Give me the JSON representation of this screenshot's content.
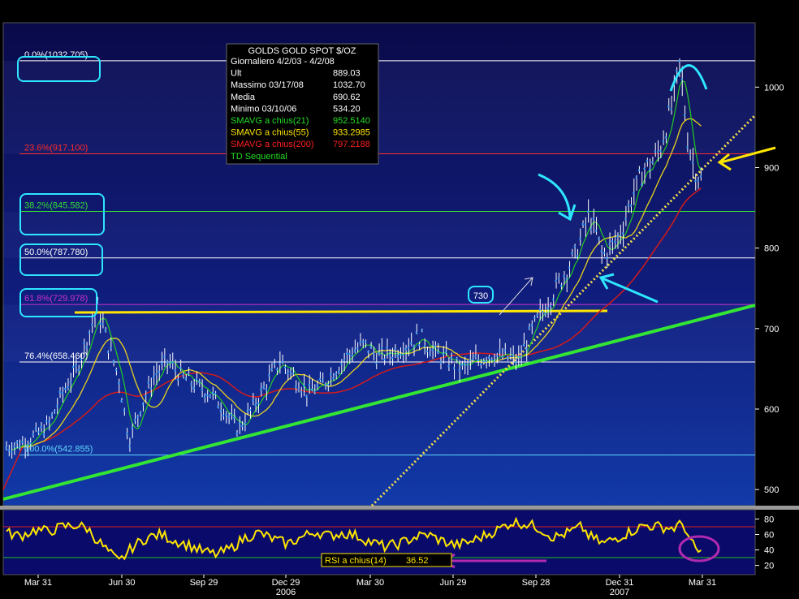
{
  "chart_data": {
    "type": "line",
    "title": "GOLDS  GOLD SPOT $/OZ",
    "info_panel": {
      "rows": [
        {
          "label": "Giornaliero 4/2/03 - 4/2/08",
          "value": "",
          "color": "#ffffff"
        },
        {
          "label": "Ult",
          "value": "889.03",
          "color": "#ffffff"
        },
        {
          "label": "Massimo  03/17/08",
          "value": "1032.70",
          "color": "#ffffff"
        },
        {
          "label": "Media",
          "value": "690.62",
          "color": "#ffffff"
        },
        {
          "label": "Minimo  03/10/06",
          "value": "534.20",
          "color": "#ffffff"
        },
        {
          "label": "SMAVG a chius(21)",
          "value": "952.5140",
          "color": "#22dd22"
        },
        {
          "label": "SMAVG a chius(55)",
          "value": "933.2985",
          "color": "#ffe600"
        },
        {
          "label": "SMAVG a chius(200)",
          "value": "797.2188",
          "color": "#ff2020"
        },
        {
          "label": "TD Sequential",
          "value": "",
          "color": "#22dd22"
        }
      ]
    },
    "price_axis": {
      "ticks": [
        500,
        600,
        700,
        800,
        900,
        1000
      ],
      "ylim": [
        480,
        1080
      ]
    },
    "rsi_axis": {
      "ticks": [
        20,
        40,
        60,
        80
      ],
      "ylim": [
        8,
        92
      ]
    },
    "x_axis": {
      "ticks": [
        "Mar 31",
        "Jun 30",
        "Sep 29",
        "Dec 29",
        "Mar 30",
        "Jun 29",
        "Sep 28",
        "Dec 31",
        "Mar 31"
      ],
      "years": [
        "2006",
        "2007"
      ]
    },
    "fib_levels": [
      {
        "label": "0.0%(1032.705)",
        "value": 1032.705,
        "color": "#ffffff"
      },
      {
        "label": "23.6%(917.100)",
        "value": 917.1,
        "color": "#ff2a2a"
      },
      {
        "label": "38.2%(845.582)",
        "value": 845.582,
        "color": "#33dd33"
      },
      {
        "label": "50.0%(787.780)",
        "value": 787.78,
        "color": "#ffffff"
      },
      {
        "label": "61.8%(729.978)",
        "value": 729.978,
        "color": "#cc33cc"
      },
      {
        "label": "76.4%(658.460)",
        "value": 658.46,
        "color": "#ffffff"
      },
      {
        "label": "100.0%(542.855)",
        "value": 542.855,
        "color": "#5fd8ff"
      }
    ],
    "annotations": {
      "level_730": "730",
      "rsi_label": "RSI a chius(14)",
      "rsi_value": "36.52"
    },
    "series": [
      {
        "name": "SMAVG a chius(21)",
        "color": "#22dd22"
      },
      {
        "name": "SMAVG a chius(55)",
        "color": "#ffe600"
      },
      {
        "name": "SMAVG a chius(200)",
        "color": "#ff2020"
      },
      {
        "name": "RSI a chius(14)",
        "color": "#ffe600"
      }
    ],
    "price_keypoints": [
      [
        0,
        552
      ],
      [
        3,
        560
      ],
      [
        6,
        580
      ],
      [
        8,
        620
      ],
      [
        10,
        650
      ],
      [
        12,
        700
      ],
      [
        13,
        725
      ],
      [
        14.5,
        680
      ],
      [
        16,
        640
      ],
      [
        17.5,
        560
      ],
      [
        19,
        600
      ],
      [
        21,
        640
      ],
      [
        23,
        660
      ],
      [
        25,
        640
      ],
      [
        27,
        630
      ],
      [
        29,
        620
      ],
      [
        31,
        600
      ],
      [
        33,
        575
      ],
      [
        35,
        600
      ],
      [
        37,
        630
      ],
      [
        39,
        660
      ],
      [
        41,
        640
      ],
      [
        43,
        620
      ],
      [
        45,
        630
      ],
      [
        47,
        650
      ],
      [
        49,
        670
      ],
      [
        51,
        680
      ],
      [
        53,
        665
      ],
      [
        55,
        670
      ],
      [
        57,
        680
      ],
      [
        59,
        690
      ],
      [
        61,
        670
      ],
      [
        63,
        660
      ],
      [
        65,
        650
      ],
      [
        67,
        660
      ],
      [
        69,
        668
      ],
      [
        71,
        665
      ],
      [
        73,
        660
      ],
      [
        75,
        700
      ],
      [
        77,
        730
      ],
      [
        79,
        760
      ],
      [
        81,
        790
      ],
      [
        83,
        840
      ],
      [
        84,
        820
      ],
      [
        85,
        790
      ],
      [
        86,
        800
      ],
      [
        87,
        810
      ],
      [
        88,
        830
      ],
      [
        89,
        860
      ],
      [
        90,
        880
      ],
      [
        91,
        900
      ],
      [
        92,
        905
      ],
      [
        93,
        920
      ],
      [
        94,
        950
      ],
      [
        95,
        980
      ],
      [
        96,
        1030
      ],
      [
        96.5,
        990
      ],
      [
        97,
        940
      ],
      [
        98,
        900
      ],
      [
        99,
        885
      ]
    ],
    "rsi_keypoints": [
      [
        0,
        62
      ],
      [
        2,
        58
      ],
      [
        4,
        66
      ],
      [
        6,
        64
      ],
      [
        8,
        70
      ],
      [
        10,
        72
      ],
      [
        11.5,
        68
      ],
      [
        13,
        52
      ],
      [
        14.5,
        38
      ],
      [
        16,
        24
      ],
      [
        18,
        44
      ],
      [
        20,
        56
      ],
      [
        22,
        60
      ],
      [
        24,
        52
      ],
      [
        26,
        46
      ],
      [
        28,
        38
      ],
      [
        30,
        34
      ],
      [
        32,
        42
      ],
      [
        34,
        56
      ],
      [
        36,
        62
      ],
      [
        38,
        54
      ],
      [
        40,
        48
      ],
      [
        42,
        56
      ],
      [
        44,
        64
      ],
      [
        46,
        58
      ],
      [
        48,
        62
      ],
      [
        50,
        58
      ],
      [
        52,
        50
      ],
      [
        54,
        44
      ],
      [
        56,
        48
      ],
      [
        58,
        56
      ],
      [
        60,
        60
      ],
      [
        62,
        52
      ],
      [
        64,
        46
      ],
      [
        66,
        50
      ],
      [
        68,
        58
      ],
      [
        70,
        66
      ],
      [
        72,
        76
      ],
      [
        74,
        74
      ],
      [
        76,
        68
      ],
      [
        78,
        56
      ],
      [
        80,
        62
      ],
      [
        82,
        70
      ],
      [
        83,
        58
      ],
      [
        85,
        48
      ],
      [
        87,
        56
      ],
      [
        89,
        64
      ],
      [
        91,
        72
      ],
      [
        93,
        70
      ],
      [
        95,
        68
      ],
      [
        96.5,
        74
      ],
      [
        97.5,
        50
      ],
      [
        98.5,
        38
      ],
      [
        99,
        36.5
      ]
    ]
  }
}
